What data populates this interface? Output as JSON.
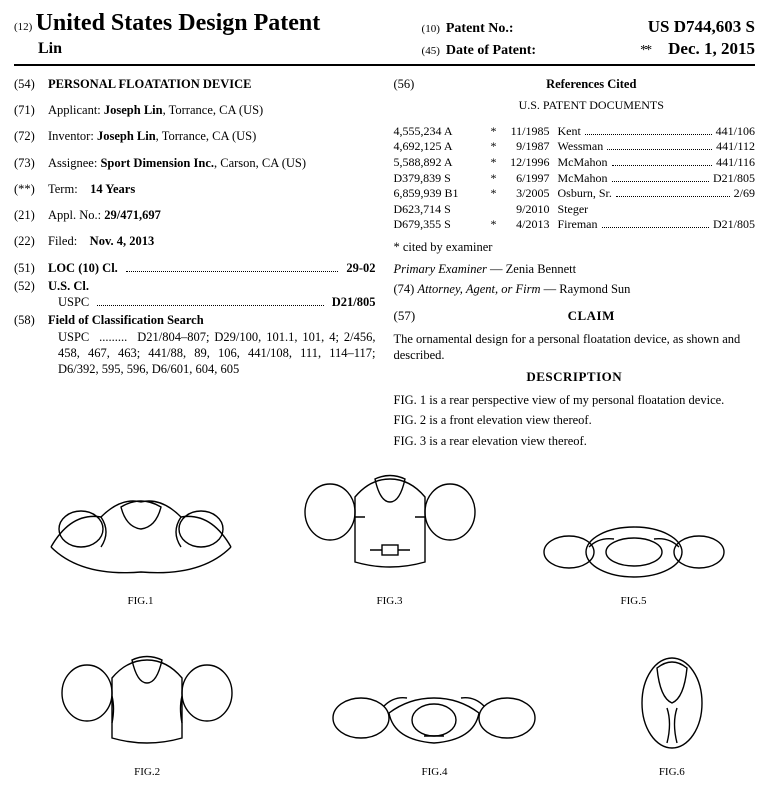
{
  "header": {
    "pub_num": "(12)",
    "pub_title": "United States Design Patent",
    "inventor_surname": "Lin",
    "patent_no_num": "(10)",
    "patent_no_label": "Patent No.:",
    "patent_no_value": "US D744,603 S",
    "date_num": "(45)",
    "date_label": "Date of Patent:",
    "date_star": "**",
    "date_value": "Dec. 1, 2015"
  },
  "left": {
    "s54": {
      "num": "(54)",
      "title": "PERSONAL FLOATATION DEVICE"
    },
    "s71": {
      "num": "(71)",
      "label": "Applicant:",
      "val": "Joseph Lin",
      "loc": ", Torrance, CA (US)"
    },
    "s72": {
      "num": "(72)",
      "label": "Inventor:",
      "val": "Joseph Lin",
      "loc": ", Torrance, CA (US)"
    },
    "s73": {
      "num": "(73)",
      "label": "Assignee:",
      "val": "Sport Dimension Inc.",
      "loc": ", Carson, CA (US)"
    },
    "sterm": {
      "num": "(**)",
      "label": "Term:",
      "val": "14 Years"
    },
    "s21": {
      "num": "(21)",
      "label": "Appl. No.:",
      "val": "29/471,697"
    },
    "s22": {
      "num": "(22)",
      "label": "Filed:",
      "val": "Nov. 4, 2013"
    },
    "s51": {
      "num": "(51)",
      "label": "LOC (10) Cl.",
      "val": "29-02"
    },
    "s52": {
      "num": "(52)",
      "label": "U.S. Cl.",
      "sub": "USPC",
      "val": "D21/805"
    },
    "s58": {
      "num": "(58)",
      "label": "Field of Classification Search",
      "sub": "USPC",
      "val": "D21/804–807; D29/100, 101.1, 101, 4; 2/456, 458, 467, 463; 441/88, 89, 106, 441/108, 111, 114–117; D6/392, 595, 596, D6/601, 604, 605"
    }
  },
  "right": {
    "s56": {
      "num": "(56)",
      "title": "References Cited",
      "sub": "U.S. PATENT DOCUMENTS"
    },
    "refs": [
      {
        "a": "4,555,234 A",
        "b": "*",
        "c": "11/1985",
        "d": "Kent",
        "cls": "441/106"
      },
      {
        "a": "4,692,125 A",
        "b": "*",
        "c": "9/1987",
        "d": "Wessman",
        "cls": "441/112"
      },
      {
        "a": "5,588,892 A",
        "b": "*",
        "c": "12/1996",
        "d": "McMahon",
        "cls": "441/116"
      },
      {
        "a": "D379,839 S",
        "b": "*",
        "c": "6/1997",
        "d": "McMahon",
        "cls": "D21/805"
      },
      {
        "a": "6,859,939 B1",
        "b": "*",
        "c": "3/2005",
        "d": "Osburn, Sr.",
        "cls": "2/69"
      },
      {
        "a": "D623,714 S",
        "b": "",
        "c": "9/2010",
        "d": "Steger",
        "cls": ""
      },
      {
        "a": "D679,355 S",
        "b": "*",
        "c": "4/2013",
        "d": "Fireman",
        "cls": "D21/805"
      }
    ],
    "cited_note": "* cited by examiner",
    "examiner_line": {
      "label": "Primary Examiner",
      "sep": " — ",
      "val": "Zenia Bennett"
    },
    "attorney_line": {
      "num": "(74)",
      "label": "Attorney, Agent, or Firm",
      "sep": " — ",
      "val": "Raymond Sun"
    },
    "s57": {
      "num": "(57)",
      "title": "CLAIM"
    },
    "claim_text": "The ornamental design for a personal floatation device, as shown and described.",
    "desc_title": "DESCRIPTION",
    "desc": [
      "FIG. 1 is a rear perspective view of my personal floatation device.",
      "FIG. 2 is a front elevation view thereof.",
      "FIG. 3 is a rear elevation view thereof."
    ]
  },
  "figs": {
    "f1": "FIG.1",
    "f2": "FIG.2",
    "f3": "FIG.3",
    "f4": "FIG.4",
    "f5": "FIG.5",
    "f6": "FIG.6"
  }
}
